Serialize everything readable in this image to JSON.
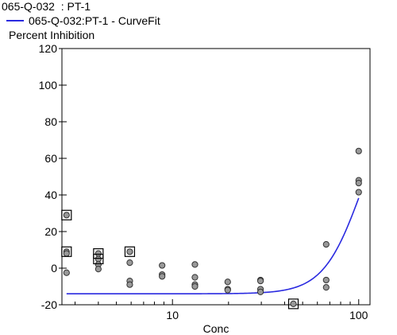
{
  "chart_data": {
    "type": "scatter",
    "title": "065-Q-032  : PT-1",
    "legend": [
      {
        "name": "065-Q-032:PT-1 - CurveFit",
        "color": "#2a2ae0"
      }
    ],
    "ylabel": "Percent Inhibition",
    "xlabel": "Conc",
    "xscale": "log",
    "xlim": [
      2.55,
      115
    ],
    "ylim": [
      -20,
      120
    ],
    "yticks": [
      "-20",
      "0",
      "20",
      "40",
      "60",
      "80",
      "100",
      "120"
    ],
    "xticks": [
      "10",
      "100"
    ],
    "series": [
      {
        "kind": "points",
        "marker": "filled-circle",
        "color": "#999999",
        "points": [
          {
            "x": 2.7,
            "y": 29
          },
          {
            "x": 2.7,
            "y": 9
          },
          {
            "x": 2.7,
            "y": 8
          },
          {
            "x": 2.7,
            "y": -2.5
          },
          {
            "x": 4.0,
            "y": 8
          },
          {
            "x": 4.0,
            "y": 5
          },
          {
            "x": 4.0,
            "y": 2
          },
          {
            "x": 4.0,
            "y": -0.5
          },
          {
            "x": 5.9,
            "y": 9
          },
          {
            "x": 5.9,
            "y": 3
          },
          {
            "x": 5.9,
            "y": -7
          },
          {
            "x": 5.9,
            "y": -9
          },
          {
            "x": 8.8,
            "y": 1.5
          },
          {
            "x": 8.8,
            "y": -3.5
          },
          {
            "x": 8.8,
            "y": -4.5
          },
          {
            "x": 13.2,
            "y": 2
          },
          {
            "x": 13.2,
            "y": -5
          },
          {
            "x": 13.2,
            "y": -9
          },
          {
            "x": 13.2,
            "y": -10
          },
          {
            "x": 19.8,
            "y": -7.5
          },
          {
            "x": 19.8,
            "y": -11.5
          },
          {
            "x": 19.8,
            "y": -12
          },
          {
            "x": 29.7,
            "y": -6.5
          },
          {
            "x": 29.7,
            "y": -7
          },
          {
            "x": 29.7,
            "y": -11.5
          },
          {
            "x": 29.7,
            "y": -13
          },
          {
            "x": 44.6,
            "y": -19.5
          },
          {
            "x": 66.9,
            "y": 13
          },
          {
            "x": 66.9,
            "y": -6.5
          },
          {
            "x": 66.9,
            "y": -10.5
          },
          {
            "x": 100,
            "y": 64
          },
          {
            "x": 100,
            "y": 48
          },
          {
            "x": 100,
            "y": 46.5
          },
          {
            "x": 100,
            "y": 41.5
          }
        ],
        "masked": [
          {
            "x": 2.7,
            "y": 29
          },
          {
            "x": 2.7,
            "y": 9
          },
          {
            "x": 4.0,
            "y": 8
          },
          {
            "x": 4.0,
            "y": 5
          },
          {
            "x": 5.9,
            "y": 9
          },
          {
            "x": 44.6,
            "y": -19.5
          }
        ]
      }
    ],
    "curve_fit": {
      "name": "065-Q-032:PT-1 - CurveFit",
      "color": "#2a2ae0",
      "bottom": -14,
      "top": 100,
      "ec50": 104,
      "hill": 4.2,
      "x_start": 2.7,
      "x_end": 100
    }
  }
}
